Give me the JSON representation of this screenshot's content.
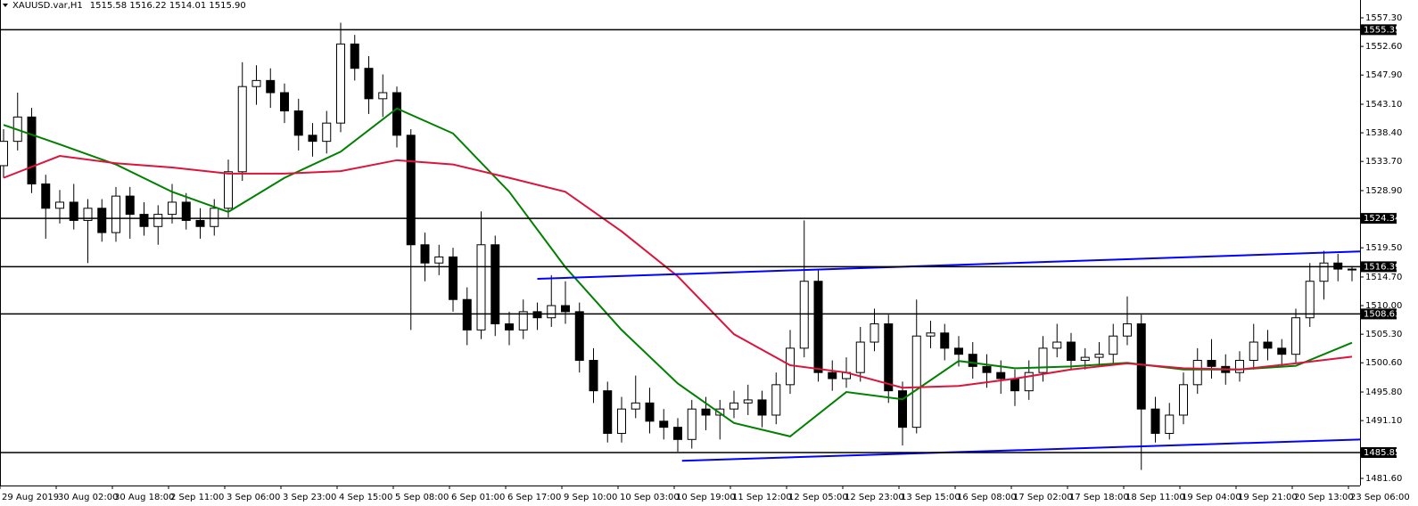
{
  "chart_data": {
    "type": "candlestick",
    "title": "XAUUSD.var,H1",
    "quote": "1515.58 1516.22 1514.01 1515.90",
    "categories": [
      "29 Aug 2019",
      null,
      null,
      null,
      "30 Aug 02:00",
      null,
      null,
      null,
      "30 Aug 18:00",
      null,
      null,
      null,
      "2 Sep 11:00",
      null,
      null,
      null,
      "3 Sep 06:00",
      null,
      null,
      null,
      "3 Sep 23:00",
      null,
      null,
      null,
      "4 Sep 15:00",
      null,
      null,
      null,
      "5 Sep 08:00",
      null,
      null,
      null,
      "6 Sep 01:00",
      null,
      null,
      null,
      "6 Sep 17:00",
      null,
      null,
      null,
      "9 Sep 10:00",
      null,
      null,
      null,
      "10 Sep 03:00",
      null,
      null,
      null,
      "10 Sep 19:00",
      null,
      null,
      null,
      "11 Sep 12:00",
      null,
      null,
      null,
      "12 Sep 05:00",
      null,
      null,
      null,
      "12 Sep 23:00",
      null,
      null,
      null,
      "13 Sep 15:00",
      null,
      null,
      null,
      "16 Sep 08:00",
      null,
      null,
      null,
      "17 Sep 02:00",
      null,
      null,
      null,
      "17 Sep 18:00",
      null,
      null,
      null,
      "18 Sep 11:00",
      null,
      null,
      null,
      "19 Sep 04:00",
      null,
      null,
      null,
      "19 Sep 21:00",
      null,
      null,
      null,
      "20 Sep 13:00",
      null,
      null,
      null,
      "23 Sep 06:00"
    ],
    "open": [
      1533,
      1537,
      1541,
      1530,
      1526,
      1527,
      1524,
      1526,
      1522,
      1528,
      1525,
      1523,
      1525,
      1527,
      1524,
      1523,
      1526,
      1532,
      1546,
      1547,
      1545,
      1542,
      1538,
      1537,
      1540,
      1553,
      1549,
      1544,
      1545,
      1538,
      1520,
      1517,
      1518,
      1511,
      1506,
      1520,
      1507,
      1506,
      1509,
      1508,
      1510,
      1509,
      1501,
      1496,
      1489,
      1493,
      1494,
      1491,
      1490,
      1488,
      1493,
      1492,
      1493,
      1494,
      1494.5,
      1492,
      1497,
      1503,
      1514,
      1499,
      1498,
      1499,
      1504,
      1507,
      1496,
      1490,
      1505,
      1505.5,
      1503,
      1502,
      1500,
      1499,
      1498,
      1496,
      1499,
      1503,
      1504,
      1501,
      1501.5,
      1502,
      1505,
      1507,
      1493,
      1489,
      1492,
      1497,
      1501,
      1500,
      1499,
      1501,
      1504,
      1503,
      1502,
      1508,
      1514,
      1517,
      1516
    ],
    "high": [
      1539,
      1545,
      1542.5,
      1531.5,
      1529,
      1530,
      1527.5,
      1527.5,
      1529.5,
      1529.5,
      1527,
      1526.5,
      1530,
      1528.5,
      1526,
      1527.5,
      1534,
      1550,
      1549.5,
      1549,
      1546.5,
      1544,
      1540,
      1542,
      1556.5,
      1554.5,
      1551,
      1548,
      1546,
      1539,
      1522,
      1520,
      1519.5,
      1513,
      1525.5,
      1521.5,
      1509,
      1511,
      1510.5,
      1515,
      1514,
      1510.5,
      1503,
      1497.5,
      1495,
      1498.5,
      1496.5,
      1493,
      1491.5,
      1494.5,
      1495,
      1494.5,
      1496,
      1497,
      1496,
      1499,
      1506,
      1524,
      1516,
      1501,
      1501.5,
      1506.5,
      1509.5,
      1508.5,
      1497.5,
      1511,
      1507.5,
      1507,
      1505,
      1504,
      1502,
      1501,
      1499.5,
      1501,
      1505,
      1507,
      1505.5,
      1503,
      1504,
      1507,
      1511.5,
      1508.5,
      1495,
      1494,
      1499,
      1503,
      1504.5,
      1502,
      1502.5,
      1507,
      1506,
      1504.5,
      1509.5,
      1517,
      1519,
      1518.5,
      1516.5
    ],
    "low": [
      1531,
      1535.5,
      1528.5,
      1521,
      1523.5,
      1522.5,
      1517,
      1520.5,
      1520.5,
      1521,
      1521.5,
      1520,
      1523.5,
      1522.5,
      1521,
      1521.5,
      1524.5,
      1530.5,
      1543,
      1542.5,
      1540,
      1535.5,
      1534.5,
      1535,
      1538.5,
      1547,
      1541.5,
      1541,
      1536,
      1506,
      1514,
      1515,
      1509,
      1503.5,
      1504.5,
      1505,
      1503.5,
      1504.5,
      1506,
      1506.5,
      1507,
      1499,
      1494,
      1487.5,
      1487.5,
      1491.5,
      1489,
      1488,
      1486,
      1486.5,
      1489.5,
      1488,
      1491.5,
      1492,
      1490,
      1490.5,
      1495.5,
      1501.5,
      1497.5,
      1496,
      1496.5,
      1497.5,
      1502.5,
      1494,
      1487,
      1489,
      1503,
      1501,
      1500,
      1498,
      1496.5,
      1495.5,
      1493.5,
      1494.5,
      1497.5,
      1501.5,
      1499.5,
      1499.5,
      1500,
      1500.5,
      1503.5,
      1483,
      1487.5,
      1488,
      1490.5,
      1495.5,
      1498,
      1497,
      1497.5,
      1499.5,
      1501,
      1500,
      1500.5,
      1506.5,
      1511,
      1514,
      1514
    ],
    "close": [
      1537,
      1541,
      1530,
      1526,
      1527,
      1524,
      1526,
      1522,
      1528,
      1525,
      1523,
      1525,
      1527,
      1524,
      1523,
      1526,
      1532,
      1546,
      1547,
      1545,
      1542,
      1538,
      1537,
      1540,
      1553,
      1549,
      1544,
      1545,
      1538,
      1520,
      1517,
      1518,
      1511,
      1506,
      1520,
      1507,
      1506,
      1509,
      1508,
      1510,
      1509,
      1501,
      1496,
      1489,
      1493,
      1494,
      1491,
      1490,
      1488,
      1493,
      1492,
      1493,
      1494,
      1494.5,
      1492,
      1497,
      1503,
      1514,
      1499,
      1498,
      1499,
      1504,
      1507,
      1496,
      1490,
      1505,
      1505.5,
      1503,
      1502,
      1500,
      1499,
      1498,
      1496,
      1499,
      1503,
      1504,
      1501,
      1501.5,
      1502,
      1505,
      1507,
      1493,
      1489,
      1492,
      1497,
      1501,
      1500,
      1499,
      1501,
      1504,
      1503,
      1502,
      1508,
      1514,
      1517,
      1516,
      1515.9
    ],
    "up_color": "#ffffff",
    "down_color": "#000000",
    "outline_color": "#000000",
    "ylim": [
      1480.43,
      1560.23
    ],
    "yticks": [
      {
        "value": 1557.3,
        "label": "1557.30"
      },
      {
        "value": 1552.6,
        "label": "1552.60"
      },
      {
        "value": 1547.9,
        "label": "1547.90"
      },
      {
        "value": 1543.1,
        "label": "1543.10"
      },
      {
        "value": 1538.4,
        "label": "1538.40"
      },
      {
        "value": 1533.7,
        "label": "1533.70"
      },
      {
        "value": 1528.9,
        "label": "1528.90"
      },
      {
        "value": 1519.5,
        "label": "1519.50"
      },
      {
        "value": 1514.7,
        "label": "1514.70"
      },
      {
        "value": 1510,
        "label": "1510.00"
      },
      {
        "value": 1505.3,
        "label": "1505.30"
      },
      {
        "value": 1500.6,
        "label": "1500.60"
      },
      {
        "value": 1495.8,
        "label": "1495.80"
      },
      {
        "value": 1491.1,
        "label": "1491.10"
      },
      {
        "value": 1481.6,
        "label": "1481.60"
      }
    ],
    "levels": [
      1555.35,
      1524.34,
      1516.39,
      1508.63,
      1485.85
    ],
    "level_color": "#000000",
    "moving_averages": [
      {
        "color": "#008000",
        "x": [
          0,
          4,
          8,
          12,
          16,
          20,
          24,
          28,
          32,
          36,
          40,
          44,
          48,
          52,
          56,
          60,
          64,
          68,
          72,
          76,
          80,
          84,
          88,
          92,
          96
        ],
        "values": [
          1539.7,
          1536.5,
          1533.2,
          1528.7,
          1525.4,
          1531,
          1535.3,
          1542.4,
          1538.3,
          1528.7,
          1516.3,
          1506,
          1497.2,
          1490.7,
          1488.5,
          1495.8,
          1494.6,
          1500.9,
          1499.7,
          1500,
          1500.6,
          1499.5,
          1499.5,
          1500.1,
          1503.9
        ]
      },
      {
        "color": "#dc143c",
        "x": [
          0,
          4,
          8,
          12,
          16,
          20,
          24,
          28,
          32,
          36,
          40,
          44,
          48,
          52,
          56,
          60,
          64,
          68,
          72,
          76,
          80,
          84,
          88,
          92,
          96
        ],
        "values": [
          1531,
          1534.6,
          1533.4,
          1532.7,
          1531.7,
          1531.7,
          1532.1,
          1533.9,
          1533.2,
          1531,
          1528.7,
          1522.2,
          1514.8,
          1505.3,
          1500.2,
          1499,
          1496.5,
          1496.8,
          1498,
          1499.5,
          1500.5,
          1499.7,
          1499.5,
          1500.5,
          1501.6
        ]
      }
    ],
    "trend_lines": [
      {
        "color": "#0000ff",
        "x": [
          38,
          96.6
        ],
        "values": [
          1514.4,
          1518.9
        ]
      },
      {
        "color": "#0000ff",
        "x": [
          48.3,
          96.6
        ],
        "values": [
          1484.5,
          1488
        ]
      }
    ]
  }
}
